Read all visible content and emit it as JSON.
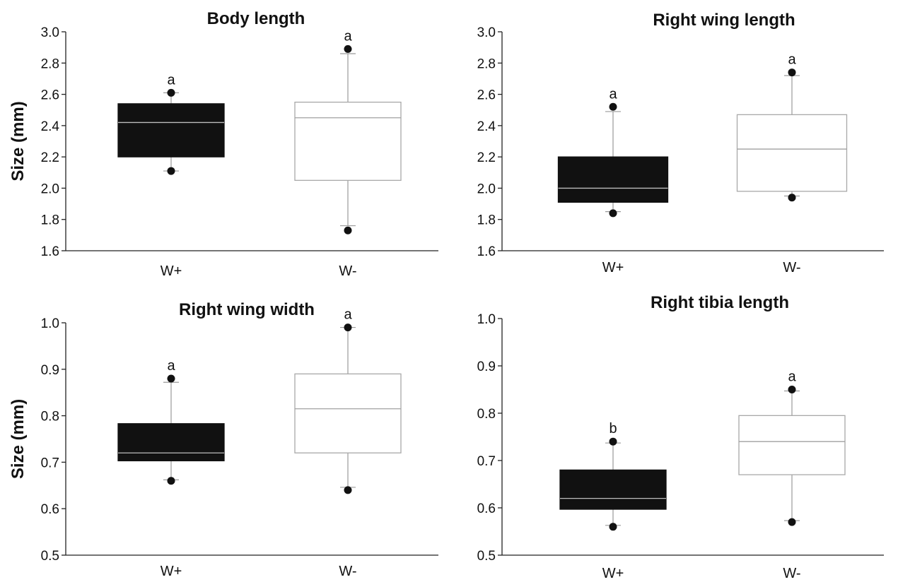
{
  "chart_data": [
    {
      "type": "box",
      "title": "Body length",
      "ylabel": "Size (mm)",
      "ylim": [
        1.6,
        3.0
      ],
      "yticks": [
        "1.6",
        "1.8",
        "2.0",
        "2.2",
        "2.4",
        "2.6",
        "2.8",
        "3.0"
      ],
      "categories": [
        "W+",
        "W-"
      ],
      "boxes": [
        {
          "category": "W+",
          "q1": 2.2,
          "median": 2.42,
          "q3": 2.54,
          "whisker_low": 2.11,
          "whisker_high": 2.61,
          "outliers": [
            2.11,
            2.61
          ],
          "color": "#111111",
          "label": "a"
        },
        {
          "category": "W-",
          "q1": 2.05,
          "median": 2.45,
          "q3": 2.55,
          "whisker_low": 1.76,
          "whisker_high": 2.86,
          "outliers": [
            1.73,
            2.89
          ],
          "color": "#ffffff",
          "label": "a"
        }
      ]
    },
    {
      "type": "box",
      "title": "Right wing length",
      "ylabel": "",
      "ylim": [
        1.6,
        3.0
      ],
      "yticks": [
        "1.6",
        "1.8",
        "2.0",
        "2.2",
        "2.4",
        "2.6",
        "2.8",
        "3.0"
      ],
      "categories": [
        "W+",
        "W-"
      ],
      "boxes": [
        {
          "category": "W+",
          "q1": 1.91,
          "median": 2.0,
          "q3": 2.2,
          "whisker_low": 1.85,
          "whisker_high": 2.49,
          "outliers": [
            1.84,
            2.52
          ],
          "color": "#111111",
          "label": "a"
        },
        {
          "category": "W-",
          "q1": 1.98,
          "median": 2.25,
          "q3": 2.47,
          "whisker_low": 1.95,
          "whisker_high": 2.72,
          "outliers": [
            1.94,
            2.74
          ],
          "color": "#ffffff",
          "label": "a"
        }
      ]
    },
    {
      "type": "box",
      "title": "Right wing width",
      "ylabel": "Size (mm)",
      "ylim": [
        0.5,
        1.0
      ],
      "yticks": [
        "0.5",
        "0.6",
        "0.7",
        "0.8",
        "0.9",
        "1.0"
      ],
      "categories": [
        "W+",
        "W-"
      ],
      "boxes": [
        {
          "category": "W+",
          "q1": 0.703,
          "median": 0.72,
          "q3": 0.783,
          "whisker_low": 0.662,
          "whisker_high": 0.872,
          "outliers": [
            0.66,
            0.88
          ],
          "color": "#111111",
          "label": "a"
        },
        {
          "category": "W-",
          "q1": 0.72,
          "median": 0.815,
          "q3": 0.89,
          "whisker_low": 0.646,
          "whisker_high": 0.99,
          "outliers": [
            0.64,
            0.99
          ],
          "color": "#ffffff",
          "label": "a"
        }
      ]
    },
    {
      "type": "box",
      "title": "Right tibia length",
      "ylabel": "",
      "ylim": [
        0.5,
        1.0
      ],
      "yticks": [
        "0.5",
        "0.6",
        "0.7",
        "0.8",
        "0.9",
        "1.0"
      ],
      "categories": [
        "W+",
        "W-"
      ],
      "boxes": [
        {
          "category": "W+",
          "q1": 0.597,
          "median": 0.62,
          "q3": 0.68,
          "whisker_low": 0.563,
          "whisker_high": 0.737,
          "outliers": [
            0.56,
            0.74
          ],
          "color": "#111111",
          "label": "b"
        },
        {
          "category": "W-",
          "q1": 0.67,
          "median": 0.74,
          "q3": 0.795,
          "whisker_low": 0.573,
          "whisker_high": 0.847,
          "outliers": [
            0.57,
            0.85
          ],
          "color": "#ffffff",
          "label": "a"
        }
      ]
    }
  ]
}
